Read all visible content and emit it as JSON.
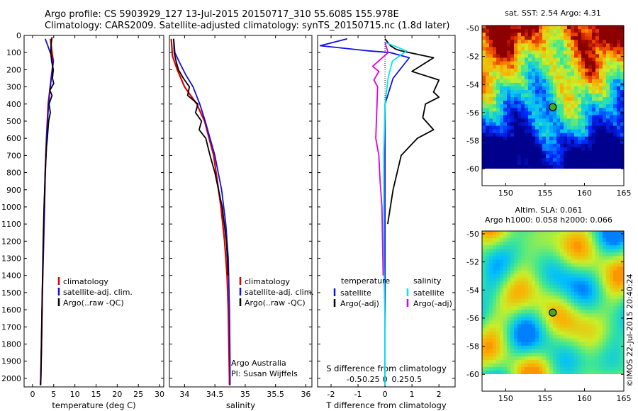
{
  "header": {
    "line1": "Argo profile: CS 5903929_127 13-Jul-2015 20150717_310 55.608S 155.978E",
    "line2": "Climatology: CARS2009. Satellite-adjusted climatology: synTS_20150715.nc (1.8d later)"
  },
  "credit": "©IMOS 22-Jul-2015 20:40:24",
  "colors": {
    "climatology": "#dd0000",
    "satellite": "#1010e0",
    "argo": "#000000",
    "sal_satellite": "#00e8e8",
    "sal_argo": "#e000e0"
  },
  "chart_data": [
    {
      "type": "line",
      "xlabel": "temperature (deg C)",
      "ylabel": "",
      "xlim": [
        -2,
        31
      ],
      "ylim": [
        2050,
        0
      ],
      "xticks": [
        0,
        5,
        10,
        15,
        20,
        25,
        30
      ],
      "yticks": [
        0,
        100,
        200,
        300,
        400,
        500,
        600,
        700,
        800,
        900,
        1000,
        1100,
        1200,
        1300,
        1400,
        1500,
        1600,
        1700,
        1800,
        1900,
        2000
      ],
      "legend": [
        "climatology",
        "satellite-adj. clim.",
        "Argo(..raw -QC)"
      ],
      "series": [
        {
          "name": "climatology",
          "x": [
            4.2,
            4.6,
            4.9,
            4.4,
            3.7,
            3.3,
            3.0,
            2.8,
            2.6,
            2.3,
            2.1,
            1.95,
            1.85
          ],
          "y": [
            20,
            100,
            150,
            250,
            400,
            600,
            800,
            1000,
            1200,
            1500,
            1800,
            2000,
            2040
          ]
        },
        {
          "name": "satellite-adj. clim.",
          "x": [
            3.0,
            3.6,
            4.9,
            4.4,
            3.8,
            3.3,
            3.0,
            2.8,
            2.6,
            2.3,
            2.1,
            1.95,
            1.85
          ],
          "y": [
            20,
            60,
            150,
            250,
            400,
            600,
            800,
            1000,
            1200,
            1500,
            1800,
            2000,
            2040
          ]
        },
        {
          "name": "Argo(..raw -QC)",
          "x": [
            4.6,
            4.4,
            4.3,
            4.5,
            4.9,
            4.7,
            5.0,
            4.1,
            4.6,
            3.9,
            4.2,
            3.8,
            3.5,
            3.3,
            3.0,
            2.7,
            2.5,
            2.3,
            2.1,
            1.9
          ],
          "y": [
            10,
            50,
            100,
            150,
            200,
            250,
            280,
            320,
            350,
            400,
            450,
            500,
            600,
            650,
            800,
            1000,
            1200,
            1500,
            1800,
            2040
          ]
        }
      ]
    },
    {
      "type": "line",
      "xlabel": "salinity",
      "xlim": [
        33.75,
        36.1
      ],
      "ylim": [
        2050,
        0
      ],
      "xticks": [
        34,
        34.5,
        35,
        35.5,
        36
      ],
      "legend": [
        "climatology",
        "satellite-adj. clim.",
        "Argo(..raw -QC)"
      ],
      "annotation": [
        "Argo Australia",
        "PI: Susan Wijffels"
      ],
      "series": [
        {
          "name": "climatology",
          "x": [
            33.78,
            33.8,
            33.88,
            34.0,
            34.2,
            34.33,
            34.48,
            34.6,
            34.66,
            34.7,
            34.72,
            34.73,
            34.74,
            34.74
          ],
          "y": [
            20,
            120,
            200,
            300,
            400,
            500,
            700,
            1000,
            1200,
            1400,
            1600,
            1800,
            2000,
            2040
          ]
        },
        {
          "name": "satellite-adj. clim.",
          "x": [
            33.82,
            33.84,
            33.92,
            34.02,
            34.14,
            34.25,
            34.34,
            34.42,
            34.5,
            34.61,
            34.68,
            34.72,
            34.74,
            34.75,
            34.75
          ],
          "y": [
            20,
            100,
            160,
            230,
            300,
            400,
            500,
            600,
            700,
            900,
            1100,
            1300,
            1600,
            1900,
            2040
          ]
        },
        {
          "name": "Argo(..raw -QC)",
          "x": [
            33.82,
            33.83,
            33.86,
            33.9,
            33.98,
            34.08,
            34.05,
            34.22,
            34.18,
            34.28,
            34.24,
            34.35,
            34.42,
            34.5,
            34.62,
            34.69,
            34.72
          ],
          "y": [
            20,
            100,
            150,
            200,
            250,
            300,
            350,
            400,
            450,
            500,
            550,
            600,
            700,
            800,
            1000,
            1200,
            1400
          ]
        }
      ]
    },
    {
      "type": "line",
      "xlabel": "T difference from climatology",
      "x2label": "S difference from climatology",
      "xlim": [
        -2.5,
        2.6
      ],
      "ylim": [
        2050,
        0
      ],
      "xticks": [
        -2,
        -1,
        0,
        1,
        2
      ],
      "x2ticks": [
        -0.5,
        -0.25,
        0,
        0.25,
        0.5
      ],
      "legend_headers": [
        "temperature",
        "salinity"
      ],
      "legend": [
        "satellite",
        "Argo(-adj)",
        "satellite",
        "Argo(-adj)"
      ],
      "series": [
        {
          "name": "temperature satellite",
          "x": [
            -1.4,
            -2.4,
            -0.6,
            0.2,
            0.9,
            0.3,
            0.0,
            0.0,
            0.0,
            0.0,
            0.0
          ],
          "y": [
            20,
            60,
            90,
            100,
            130,
            250,
            400,
            700,
            1000,
            1500,
            2040
          ]
        },
        {
          "name": "temperature Argo(-adj)",
          "x": [
            0.0,
            0.2,
            0.4,
            0.6,
            1.8,
            1.0,
            2.0,
            1.8,
            2.0,
            1.5,
            1.4,
            1.8,
            1.2,
            0.6,
            0.3,
            0.1
          ],
          "y": [
            20,
            60,
            80,
            90,
            130,
            210,
            260,
            330,
            360,
            400,
            480,
            550,
            600,
            700,
            900,
            1100
          ]
        },
        {
          "name": "salinity satellite",
          "x": [
            0.0,
            0.35,
            0.12,
            0.05,
            0.0,
            -0.02,
            -0.02,
            -0.02,
            0.0,
            0.0
          ],
          "y": [
            40,
            90,
            150,
            250,
            400,
            700,
            1000,
            1300,
            1700,
            2040
          ]
        },
        {
          "name": "salinity Argo(-adj)",
          "x": [
            0.0,
            0.05,
            -0.2,
            -0.1,
            -0.18,
            -0.12,
            -0.15,
            -0.1,
            -0.08,
            -0.05,
            -0.04,
            -0.03
          ],
          "y": [
            40,
            100,
            180,
            210,
            260,
            300,
            600,
            700,
            850,
            1000,
            1200,
            1400
          ]
        }
      ]
    },
    {
      "type": "heatmap",
      "title": "sat. SST: 2.54 Argo: 4.31",
      "xlim": [
        147,
        165
      ],
      "ylim": [
        -61.2,
        -49.8
      ],
      "xticks": [
        150,
        155,
        160,
        165
      ],
      "yticks": [
        -50,
        -52,
        -54,
        -56,
        -58,
        -60
      ],
      "marker": {
        "lon": 155.978,
        "lat": -55.608
      }
    },
    {
      "type": "heatmap",
      "title_lines": [
        "Altim. SLA: 0.061",
        "Argo h1000: 0.058 h2000: 0.066"
      ],
      "xlim": [
        147,
        165
      ],
      "ylim": [
        -61.2,
        -49.8
      ],
      "xticks": [
        150,
        155,
        160,
        165
      ],
      "yticks": [
        -50,
        -52,
        -54,
        -56,
        -58,
        -60
      ],
      "marker": {
        "lon": 155.978,
        "lat": -55.608
      }
    }
  ]
}
